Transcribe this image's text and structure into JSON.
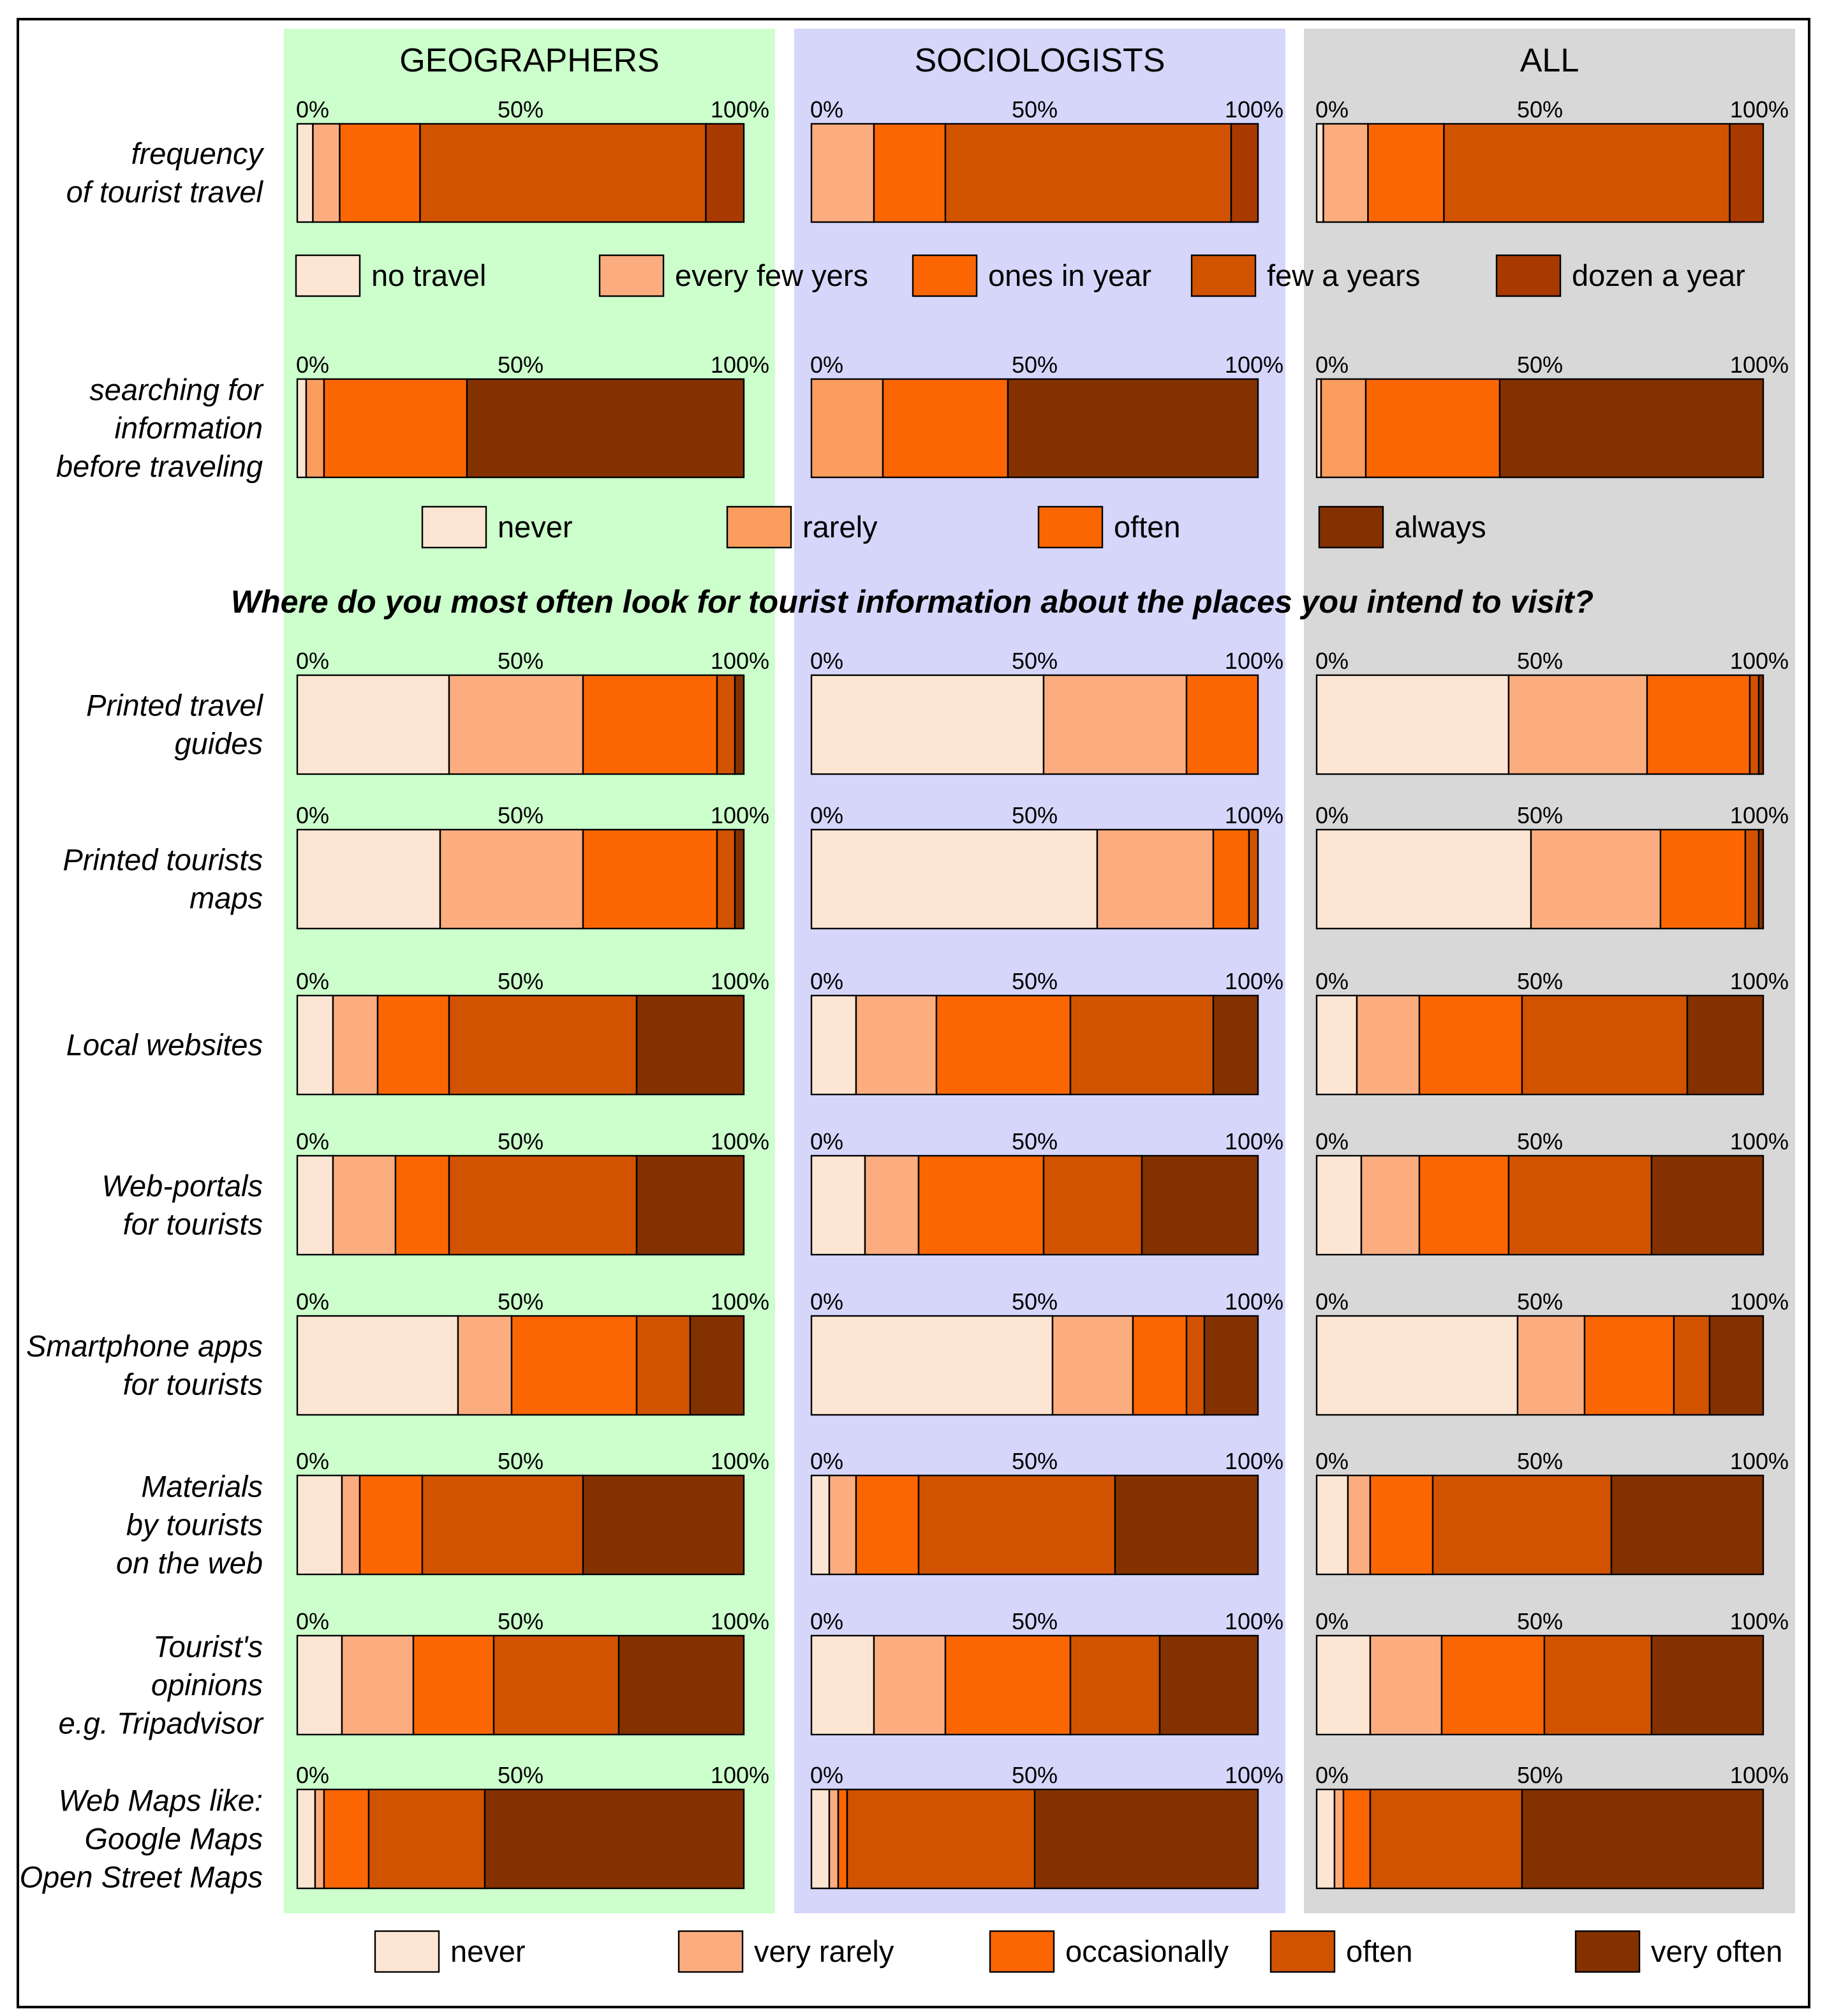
{
  "chart_data": {
    "type": "bar",
    "subtype": "100% stacked horizontal bar",
    "groups": [
      "GEOGRAPHERS",
      "SOCIOLOGISTS",
      "ALL"
    ],
    "group_colors": [
      "#ccffcc",
      "#d6d6fb",
      "#d8d8d8"
    ],
    "axis_ticks": [
      "0%",
      "50%",
      "100%"
    ],
    "question": "Where do you most often look for tourist information about the places you intend to visit?",
    "legends": {
      "travel": {
        "labels": [
          "no travel",
          "every few yers",
          "ones in year",
          "few a years",
          "dozen a year"
        ],
        "colors": [
          "#fde5d3",
          "#fbad7f",
          "#fb6603",
          "#d15300",
          "#a83a00"
        ]
      },
      "searching": {
        "labels": [
          "never",
          "rarely",
          "often",
          "always"
        ],
        "colors": [
          "#fde5d3",
          "#fb9d5f",
          "#fb6603",
          "#843100"
        ]
      },
      "sources": {
        "labels": [
          "never",
          "very rarely",
          "occasionally",
          "often",
          "very often"
        ],
        "colors": [
          "#fde5d3",
          "#fbad7f",
          "#fb6603",
          "#d15300",
          "#843100"
        ]
      }
    },
    "rows": [
      {
        "label": [
          "frequency",
          "of tourist travel"
        ],
        "legend": "travel",
        "values": [
          [
            3.5,
            6,
            18,
            64,
            8.5
          ],
          [
            0,
            14,
            16,
            64,
            6
          ],
          [
            1.5,
            10,
            17,
            64,
            7.5
          ]
        ]
      },
      {
        "label": [
          "searching for",
          "information",
          "before traveling"
        ],
        "legend": "searching",
        "values": [
          [
            2,
            4,
            32,
            62
          ],
          [
            0,
            16,
            28,
            56
          ],
          [
            1,
            10,
            30,
            59
          ]
        ]
      },
      {
        "label": [
          "Printed travel",
          "guides"
        ],
        "legend": "sources",
        "values": [
          [
            34,
            30,
            30,
            4,
            2
          ],
          [
            52,
            32,
            16,
            0,
            0
          ],
          [
            43,
            31,
            23,
            2,
            1
          ]
        ]
      },
      {
        "label": [
          "Printed tourists",
          "maps"
        ],
        "legend": "sources",
        "values": [
          [
            32,
            32,
            30,
            4,
            2
          ],
          [
            64,
            26,
            8,
            2,
            0
          ],
          [
            48,
            29,
            19,
            3,
            1
          ]
        ]
      },
      {
        "label": [
          "Local websites"
        ],
        "legend": "sources",
        "values": [
          [
            8,
            10,
            16,
            42,
            24
          ],
          [
            10,
            18,
            30,
            32,
            10
          ],
          [
            9,
            14,
            23,
            37,
            17
          ]
        ]
      },
      {
        "label": [
          "Web-portals",
          "for tourists"
        ],
        "legend": "sources",
        "values": [
          [
            8,
            14,
            12,
            42,
            24
          ],
          [
            12,
            12,
            28,
            22,
            26
          ],
          [
            10,
            13,
            20,
            32,
            25
          ]
        ]
      },
      {
        "label": [
          "Smartphone apps",
          "for tourists"
        ],
        "legend": "sources",
        "values": [
          [
            36,
            12,
            28,
            12,
            12
          ],
          [
            54,
            18,
            12,
            4,
            12
          ],
          [
            45,
            15,
            20,
            8,
            12
          ]
        ]
      },
      {
        "label": [
          "Materials",
          "by tourists",
          "on the web"
        ],
        "legend": "sources",
        "values": [
          [
            10,
            4,
            14,
            36,
            36
          ],
          [
            4,
            6,
            14,
            44,
            32
          ],
          [
            7,
            5,
            14,
            40,
            34
          ]
        ]
      },
      {
        "label": [
          "Tourist's",
          "opinions",
          "e.g. Tripadvisor"
        ],
        "legend": "sources",
        "values": [
          [
            10,
            16,
            18,
            28,
            28
          ],
          [
            14,
            16,
            28,
            20,
            22
          ],
          [
            12,
            16,
            23,
            24,
            25
          ]
        ]
      },
      {
        "label": [
          "Web Maps like:",
          "Google Maps",
          "Open Street Maps"
        ],
        "legend": "sources",
        "values": [
          [
            4,
            2,
            10,
            26,
            58
          ],
          [
            4,
            2,
            2,
            42,
            50
          ],
          [
            4,
            2,
            6,
            34,
            54
          ]
        ]
      }
    ]
  }
}
